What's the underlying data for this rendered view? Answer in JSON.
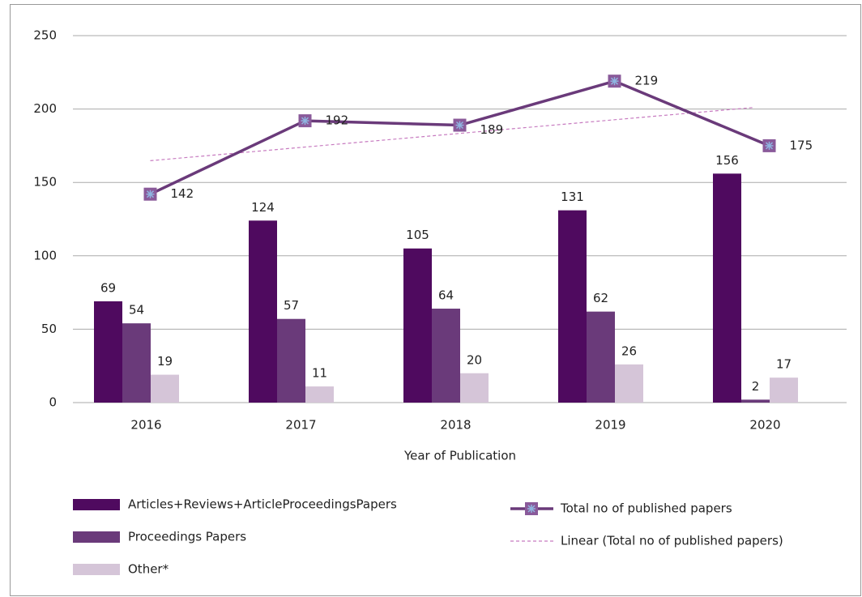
{
  "chart_data": {
    "type": "bar",
    "xlabel": "Year of Publication",
    "categories": [
      "2016",
      "2017",
      "2018",
      "2019",
      "2020"
    ],
    "ylim": [
      0,
      250
    ],
    "yticks": [
      0,
      50,
      100,
      150,
      200,
      250
    ],
    "grid": true,
    "series": [
      {
        "name": "Articles+Reviews+ArticleProceedingsPapers",
        "type": "bar",
        "color": "#4f0a5f",
        "values": [
          69,
          124,
          105,
          131,
          156
        ]
      },
      {
        "name": "Proceedings Papers",
        "type": "bar",
        "color": "#6a3a7a",
        "values": [
          54,
          57,
          64,
          62,
          2
        ]
      },
      {
        "name": "Other*",
        "type": "bar",
        "color": "#d5c5d8",
        "values": [
          19,
          11,
          20,
          26,
          17
        ]
      },
      {
        "name": "Total no of published papers",
        "type": "line",
        "color": "#6a3a7a",
        "values": [
          142,
          192,
          189,
          219,
          175
        ]
      }
    ],
    "trendline": {
      "name": "Linear (Total no of published papers)",
      "type": "linear",
      "color": "#c77bc0"
    }
  }
}
